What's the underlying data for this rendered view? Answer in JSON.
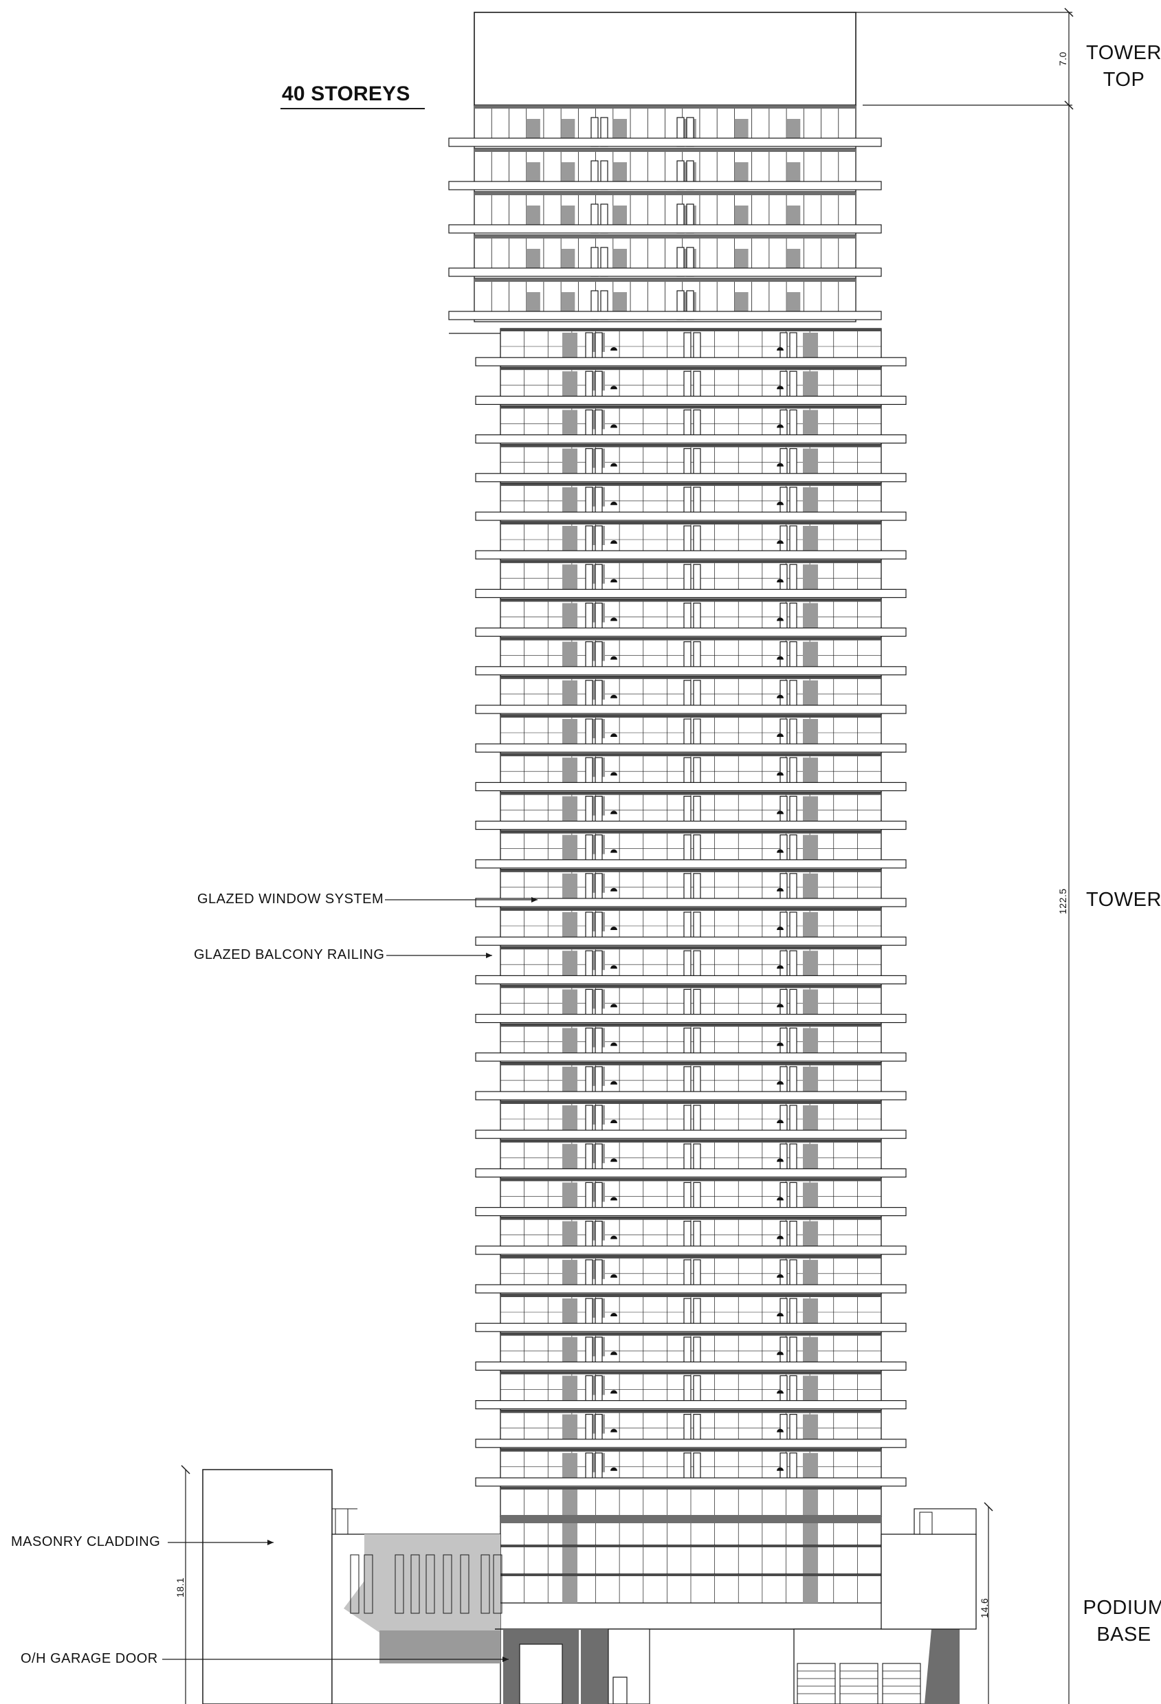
{
  "title": "40 STOREYS",
  "zones": {
    "tower_top": "TOWER TOP",
    "tower": "TOWER",
    "podium_base": "PODIUM BASE"
  },
  "dimensions": {
    "tower_top": "7.0",
    "tower": "122.5",
    "podium_left": "18.1",
    "podium_right": "14.6"
  },
  "annotations": {
    "glazed_window_system": "GLAZED WINDOW SYSTEM",
    "glazed_balcony_railing": "GLAZED BALCONY RAILING",
    "masonry_cladding": "MASONRY CLADDING",
    "garage_door": "O/H GARAGE DOOR"
  },
  "colors": {
    "line": "#1a1a1a",
    "shade": "#9a9a9a",
    "dark_shade": "#6e6e6e",
    "light_shade": "#c4c4c4"
  }
}
